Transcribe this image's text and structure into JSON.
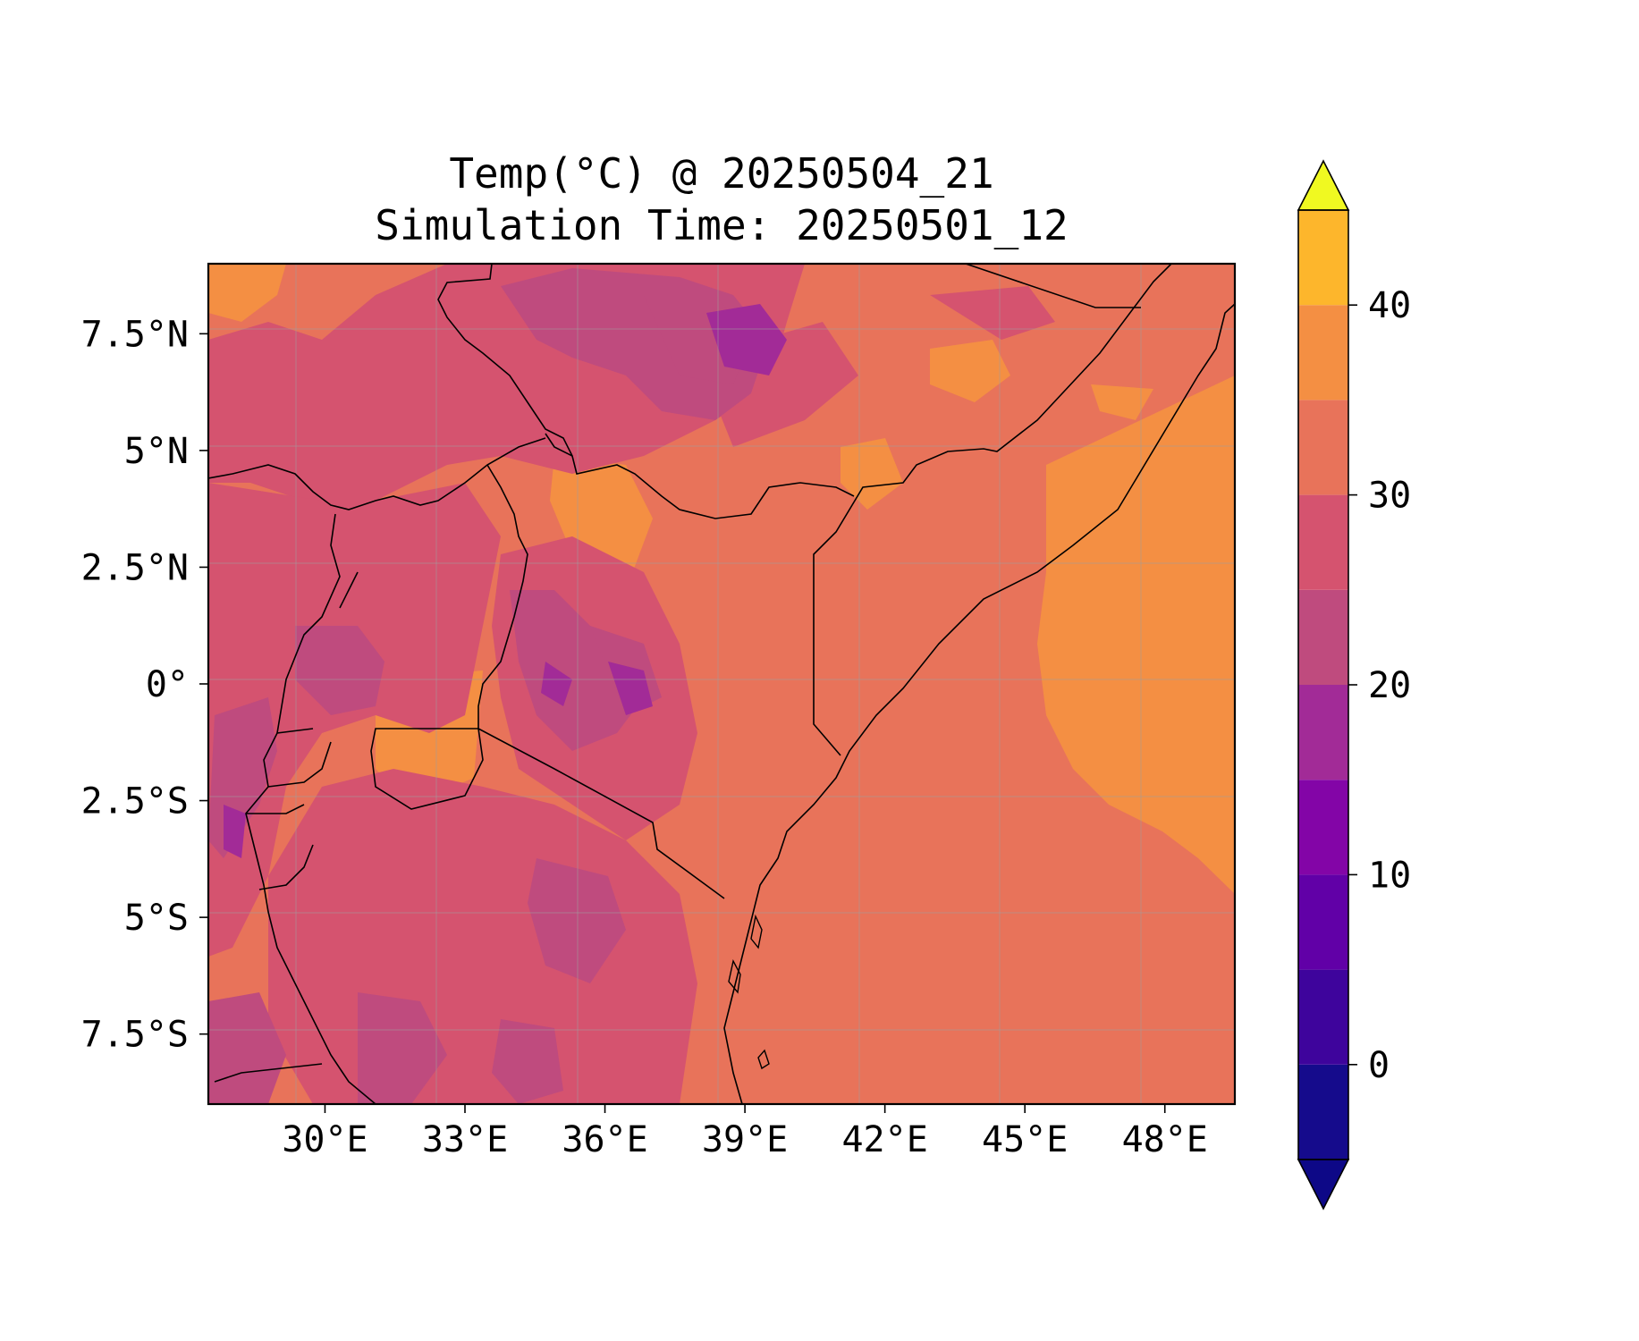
{
  "title": {
    "line1": "Temp(°C) @ 20250504_21",
    "line2": "Simulation Time: 20250501_12"
  },
  "map": {
    "variable": "Temperature",
    "units": "°C",
    "lon_range": [
      27.5,
      49.5
    ],
    "lat_range": [
      -9,
      9
    ],
    "lon_ticks": [
      "30°E",
      "33°E",
      "36°E",
      "39°E",
      "42°E",
      "45°E",
      "48°E"
    ],
    "lat_ticks": [
      "7.5°N",
      "5°N",
      "2.5°N",
      "0°",
      "2.5°S",
      "5°S",
      "7.5°S"
    ],
    "lon_tick_values": [
      30,
      33,
      36,
      39,
      42,
      45,
      48
    ],
    "lat_tick_values": [
      7.5,
      5,
      2.5,
      0,
      -2.5,
      -5,
      -7.5
    ],
    "gridlines": true,
    "base_color": "#e8735a"
  },
  "colorbar": {
    "ticks": [
      "0",
      "10",
      "20",
      "30",
      "40"
    ],
    "tick_values": [
      0,
      10,
      20,
      30,
      40
    ],
    "levels": [
      -5,
      0,
      5,
      10,
      15,
      20,
      25,
      30,
      35,
      40,
      45
    ],
    "extend": "both",
    "colors": [
      "#150b8c",
      "#3e049c",
      "#6100a7",
      "#8305a7",
      "#a22b97",
      "#bf4b7e",
      "#d5536f",
      "#e8735a",
      "#f48f43",
      "#fdb62c",
      "#f2e125"
    ],
    "under_color": "#0d0887",
    "over_color": "#f0f921"
  }
}
